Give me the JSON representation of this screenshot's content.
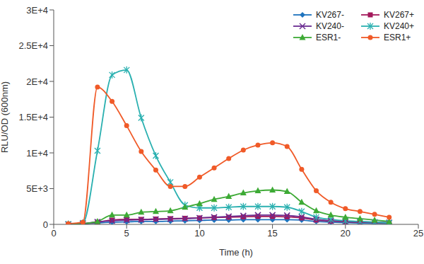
{
  "chart_data": {
    "type": "line",
    "x_label": "Time (h)",
    "y_label": "RLU/OD (600nm)",
    "x": [
      1,
      2,
      3,
      4,
      5,
      6,
      7,
      8,
      9,
      10,
      11,
      12,
      13,
      14,
      15,
      16,
      17,
      18,
      19,
      20,
      21,
      22,
      23
    ],
    "xlim": [
      0,
      25
    ],
    "xticks": [
      0,
      5,
      10,
      15,
      20,
      25
    ],
    "ylim": [
      0,
      30000
    ],
    "yticks": [
      0,
      {
        "value": 5000,
        "label": "5E+3"
      },
      {
        "value": 10000,
        "label": "1E+4"
      },
      {
        "value": 15000,
        "label": "1.5E+4"
      },
      {
        "value": 20000,
        "label": "2E+4"
      },
      {
        "value": 25000,
        "label": "2.5E+4"
      },
      {
        "value": 30000,
        "label": "3E+4"
      }
    ],
    "grid": false,
    "legend": "top right",
    "series": [
      {
        "name": "KV267-",
        "color": "#1E73BE",
        "marker": "diamond",
        "values": [
          0,
          50,
          200,
          300,
          350,
          400,
          400,
          450,
          500,
          550,
          600,
          600,
          650,
          650,
          650,
          650,
          600,
          400,
          300,
          250,
          200,
          150,
          100
        ]
      },
      {
        "name": "KV267+",
        "color": "#A3195B",
        "marker": "square",
        "values": [
          0,
          80,
          300,
          600,
          700,
          700,
          750,
          800,
          850,
          900,
          950,
          1000,
          1050,
          1100,
          1100,
          1050,
          900,
          600,
          450,
          350,
          300,
          250,
          200
        ]
      },
      {
        "name": "KV240-",
        "color": "#6A2C91",
        "marker": "x",
        "values": [
          0,
          100,
          350,
          500,
          600,
          650,
          700,
          750,
          800,
          900,
          1000,
          1100,
          1200,
          1300,
          1300,
          1250,
          1050,
          700,
          500,
          400,
          350,
          300,
          250
        ]
      },
      {
        "name": "KV240+",
        "color": "#2AB0B0",
        "marker": "star",
        "values": [
          50,
          200,
          10300,
          20900,
          21600,
          14900,
          9600,
          5900,
          2700,
          2300,
          2300,
          2400,
          2500,
          2500,
          2500,
          2400,
          1800,
          1000,
          700,
          500,
          400,
          300,
          200
        ]
      },
      {
        "name": "ESR1-",
        "color": "#3DAA35",
        "marker": "triangle",
        "values": [
          0,
          100,
          400,
          1300,
          1300,
          1700,
          1800,
          1900,
          2400,
          2900,
          3500,
          3900,
          4400,
          4700,
          4800,
          4600,
          3100,
          1900,
          1300,
          1000,
          800,
          600,
          400
        ]
      },
      {
        "name": "ESR1+",
        "color": "#F05A28",
        "marker": "circle",
        "values": [
          100,
          300,
          19200,
          17200,
          13800,
          10200,
          7600,
          5300,
          5300,
          6600,
          7900,
          9200,
          10400,
          11100,
          11400,
          10900,
          7700,
          4700,
          3100,
          2200,
          1800,
          1400,
          1000
        ]
      }
    ]
  }
}
